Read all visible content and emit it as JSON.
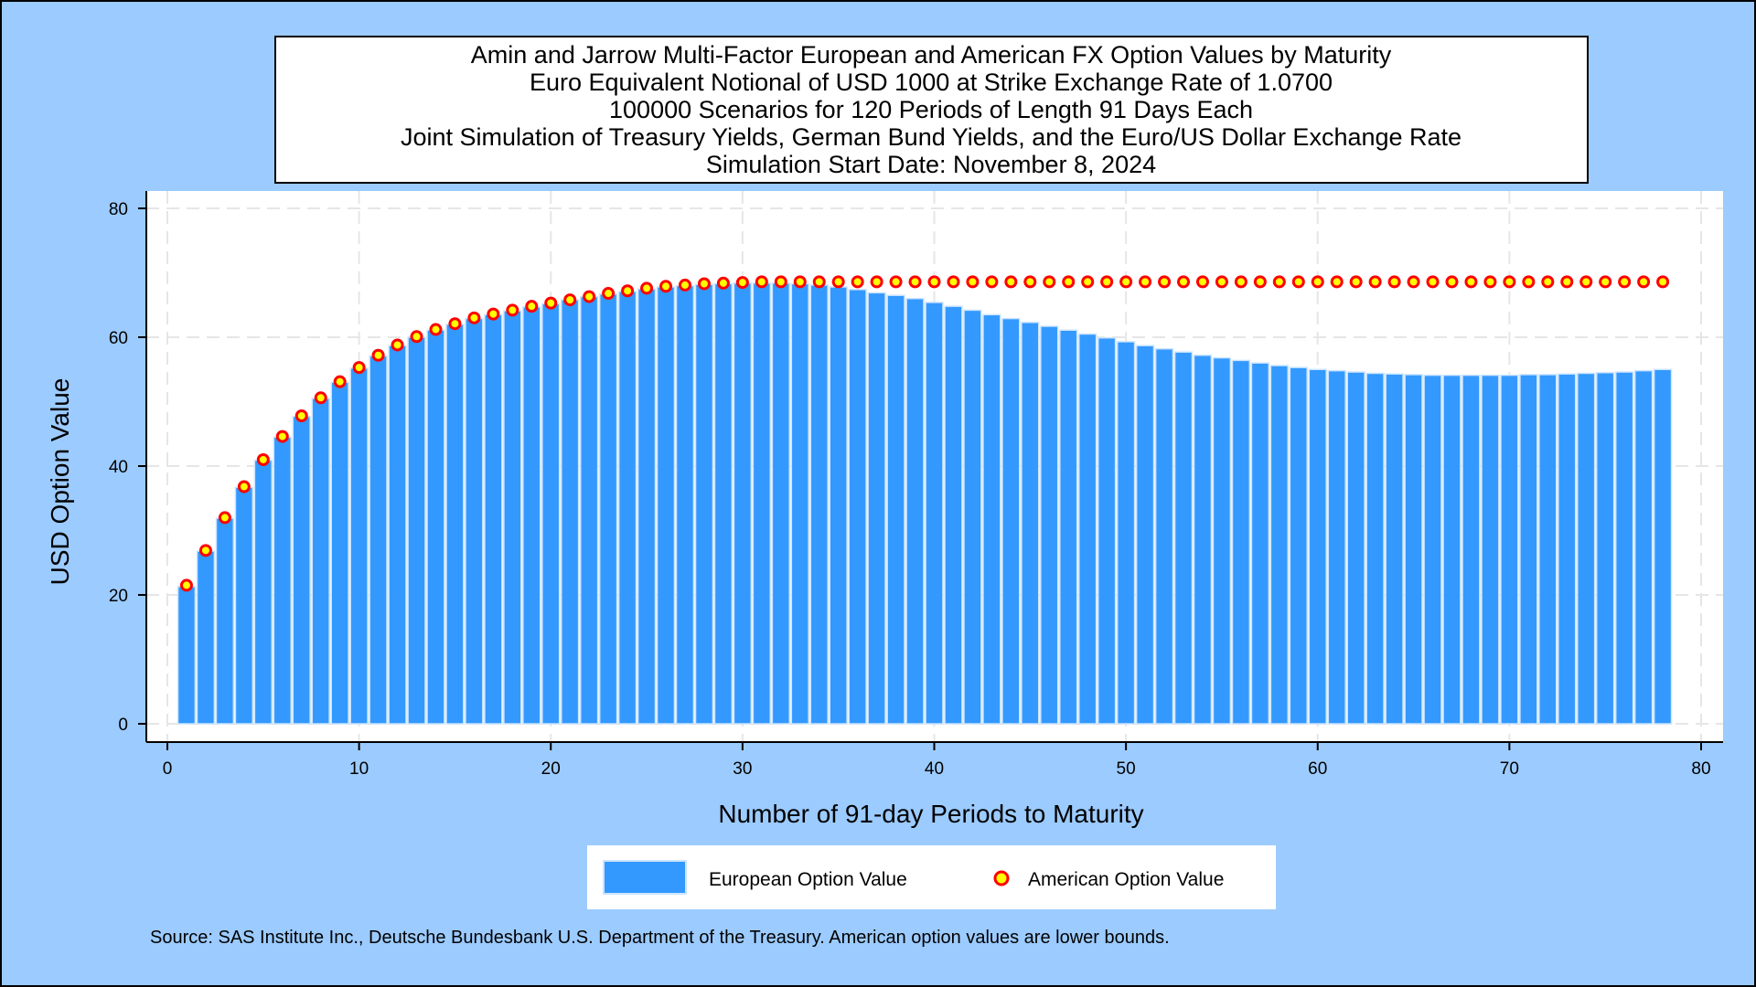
{
  "chart_data": {
    "type": "bar",
    "title_lines": [
      "Amin and Jarrow Multi-Factor European and American FX Option Values by Maturity",
      "Euro Equivalent Notional of USD 1000 at Strike Exchange Rate of  1.0700",
      "100000 Scenarios for 120 Periods of Length 91 Days Each",
      "Joint Simulation of Treasury Yields, German Bund Yields, and the Euro/US Dollar Exchange Rate",
      "Simulation Start Date: November 8, 2024"
    ],
    "xlabel": "Number of 91-day Periods to Maturity",
    "ylabel": "USD Option Value",
    "xlim": [
      0,
      80
    ],
    "ylim": [
      0,
      80
    ],
    "xticks": [
      0,
      10,
      20,
      30,
      40,
      50,
      60,
      70,
      80
    ],
    "yticks": [
      0,
      20,
      40,
      60,
      80
    ],
    "grid": true,
    "legend_position": "bottom",
    "source": "Source: SAS Institute Inc., Deutsche Bundesbank U.S. Department of the Treasury. American option values are lower bounds.",
    "x": [
      1,
      2,
      3,
      4,
      5,
      6,
      7,
      8,
      9,
      10,
      11,
      12,
      13,
      14,
      15,
      16,
      17,
      18,
      19,
      20,
      21,
      22,
      23,
      24,
      25,
      26,
      27,
      28,
      29,
      30,
      31,
      32,
      33,
      34,
      35,
      36,
      37,
      38,
      39,
      40,
      41,
      42,
      43,
      44,
      45,
      46,
      47,
      48,
      49,
      50,
      51,
      52,
      53,
      54,
      55,
      56,
      57,
      58,
      59,
      60,
      61,
      62,
      63,
      64,
      65,
      66,
      67,
      68,
      69,
      70,
      71,
      72,
      73,
      74,
      75,
      76,
      77,
      78
    ],
    "series": [
      {
        "name": "European Option Value",
        "kind": "bar",
        "color": "#3399ff",
        "values": [
          21.3,
          26.8,
          31.9,
          36.7,
          40.9,
          44.5,
          47.7,
          50.5,
          53.0,
          55.2,
          57.1,
          58.7,
          60.0,
          61.1,
          62.0,
          62.9,
          63.5,
          64.1,
          64.7,
          65.2,
          65.8,
          66.3,
          66.7,
          67.1,
          67.5,
          67.8,
          68.0,
          68.2,
          68.3,
          68.4,
          68.4,
          68.4,
          68.3,
          68.1,
          67.8,
          67.4,
          66.9,
          66.5,
          66.0,
          65.4,
          64.8,
          64.2,
          63.5,
          62.9,
          62.3,
          61.7,
          61.1,
          60.5,
          59.9,
          59.3,
          58.7,
          58.2,
          57.7,
          57.2,
          56.8,
          56.4,
          56.0,
          55.6,
          55.3,
          55.0,
          54.8,
          54.6,
          54.4,
          54.3,
          54.2,
          54.1,
          54.1,
          54.1,
          54.1,
          54.1,
          54.2,
          54.2,
          54.3,
          54.4,
          54.5,
          54.6,
          54.8,
          55.0
        ]
      },
      {
        "name": "American Option Value",
        "kind": "marker",
        "color": "#ffff00",
        "edge_color": "#ff0000",
        "values": [
          21.5,
          26.9,
          32.0,
          36.8,
          41.0,
          44.6,
          47.8,
          50.6,
          53.1,
          55.3,
          57.2,
          58.8,
          60.1,
          61.2,
          62.1,
          63.0,
          63.6,
          64.2,
          64.8,
          65.3,
          65.8,
          66.3,
          66.8,
          67.2,
          67.6,
          67.9,
          68.1,
          68.3,
          68.4,
          68.5,
          68.6,
          68.6,
          68.6,
          68.6,
          68.6,
          68.6,
          68.6,
          68.6,
          68.6,
          68.6,
          68.6,
          68.6,
          68.6,
          68.6,
          68.6,
          68.6,
          68.6,
          68.6,
          68.6,
          68.6,
          68.6,
          68.6,
          68.6,
          68.6,
          68.6,
          68.6,
          68.6,
          68.6,
          68.6,
          68.6,
          68.6,
          68.6,
          68.6,
          68.6,
          68.6,
          68.6,
          68.6,
          68.6,
          68.6,
          68.6,
          68.6,
          68.6,
          68.6,
          68.6,
          68.6,
          68.6,
          68.6,
          68.6
        ]
      }
    ]
  }
}
